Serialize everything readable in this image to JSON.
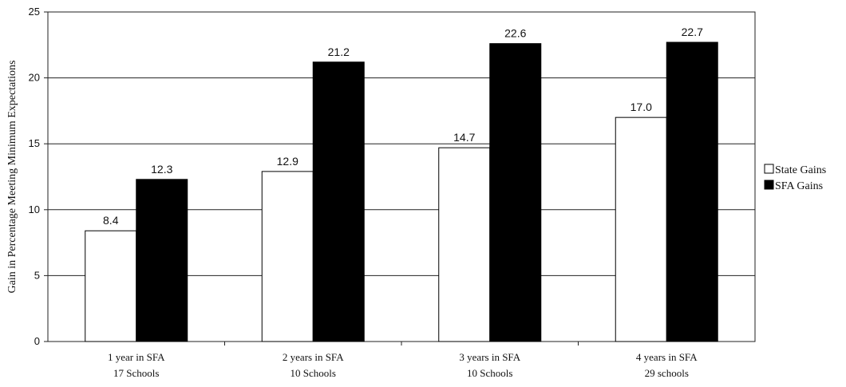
{
  "chart_data": {
    "type": "bar",
    "categories": [
      {
        "line1": "1 year in SFA",
        "line2": "17 Schools"
      },
      {
        "line1": "2 years in SFA",
        "line2": "10 Schools"
      },
      {
        "line1": "3 years in SFA",
        "line2": "10 Schools"
      },
      {
        "line1": "4 years in SFA",
        "line2": "29 schools"
      }
    ],
    "series": [
      {
        "name": "State Gains",
        "values": [
          8.4,
          12.9,
          14.7,
          17.0
        ],
        "labels": [
          "8.4",
          "12.9",
          "14.7",
          "17.0"
        ],
        "color": "#ffffff"
      },
      {
        "name": "SFA Gains",
        "values": [
          12.3,
          21.2,
          22.6,
          22.7
        ],
        "labels": [
          "12.3",
          "21.2",
          "22.6",
          "22.7"
        ],
        "color": "#000000"
      }
    ],
    "title": "",
    "xlabel": "",
    "ylabel": "Gain in Percentage Meeting Minimum Expectations",
    "ylim": [
      0,
      25
    ],
    "yticks": [
      0,
      5,
      10,
      15,
      20,
      25
    ],
    "grid": true,
    "legend_position": "right"
  }
}
